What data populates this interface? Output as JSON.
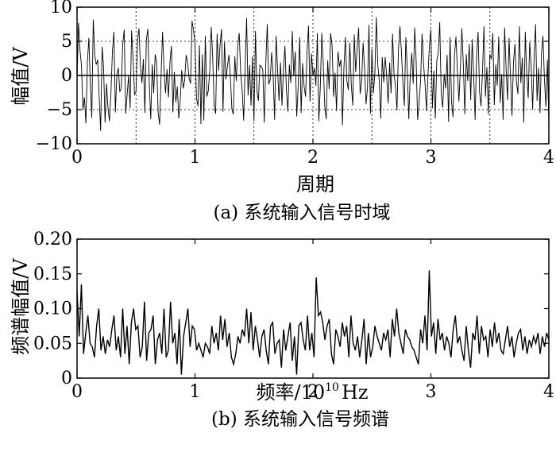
{
  "chart_data": [
    {
      "type": "line",
      "caption": "(a) 系统输入信号时域",
      "xlabel": "周期",
      "ylabel": "幅值/V",
      "xlim": [
        0,
        4
      ],
      "ylim": [
        -10,
        10
      ],
      "xticks": [
        "0",
        "1",
        "2",
        "3",
        "4"
      ],
      "yticks": [
        "10",
        "5",
        "0",
        "−5",
        "−10"
      ],
      "xtick_values": [
        0,
        1,
        2,
        3,
        4
      ],
      "ytick_values": [
        10,
        5,
        0,
        -5,
        -10
      ],
      "grid": true,
      "series": [
        {
          "values": [
            -0.7,
            7.7,
            3.7,
            1.5,
            -5.0,
            -3.2,
            -7.0,
            1.8,
            5.5,
            -1.1,
            -6.2,
            8.2,
            3.0,
            1.6,
            2.3,
            -3.1,
            -8.1,
            4.2,
            1.2,
            -6.9,
            -1.2,
            -4.8,
            -6.7,
            -2.4,
            3.5,
            6.4,
            -5.4,
            0.1,
            1.1,
            -2.4,
            -1.8,
            4.6,
            6.7,
            -5.6,
            -2.7,
            0.0,
            -4.8,
            6.6,
            2.5,
            -2.8,
            -2.4,
            5.1,
            6.9,
            1.3,
            -1.1,
            2.4,
            -5.5,
            5.2,
            6.8,
            -1.3,
            -6.4,
            1.6,
            -2.6,
            3.1,
            1.8,
            -5.4,
            -7.2,
            0.0,
            6.4,
            0.8,
            -2.6,
            0.9,
            -3.2,
            1.9,
            4.3,
            -5.4,
            0.5,
            -3.9,
            -1.6,
            -6.3,
            -3.6,
            0.8,
            -1.9,
            -0.7,
            3.0,
            1.9,
            -0.4,
            -1.2,
            8.0,
            6.6,
            4.7,
            -3.3,
            -4.5,
            4.4,
            -7.1,
            3.1,
            -6.6,
            5.8,
            -3.1,
            -2.3,
            0.6,
            7.1,
            2.7,
            -4.5,
            -5.6,
            6.1,
            0.7,
            4.5,
            6.8,
            -5.3,
            4.9,
            -0.6,
            1.4,
            3.0,
            -0.2,
            -4.9,
            -5.7,
            2.8,
            -0.8,
            4.4,
            6.2,
            0.3,
            -2.2,
            -6.6,
            1.1,
            8.4,
            -2.9,
            1.5,
            -4.4,
            2.8,
            -6.7,
            6.5,
            -2.3,
            -3.7,
            1.5,
            1.3,
            0.8,
            -6.9,
            1.7,
            7.5,
            -1.3,
            -0.6,
            3.4,
            0.1,
            -6.5,
            5.8,
            0.9,
            -3.7,
            1.9,
            -4.4,
            0.9,
            4.3,
            -2.1,
            -5.3,
            1.6,
            -1.1,
            6.5,
            -0.1,
            3.5,
            -6.0,
            -1.6,
            5.6,
            -5.5,
            1.8,
            -1.6,
            -3.1,
            3.5,
            7.3,
            -3.8,
            3.2,
            -0.1,
            1.1,
            -1.5,
            6.2,
            -6.7,
            -1.6,
            6.2,
            1.7,
            -4.5,
            -6.4,
            2.2,
            -2.0,
            6.2,
            4.3,
            -3.1,
            0.4,
            -5.2,
            3.5,
            1.3,
            2.3,
            -7.3,
            1.1,
            5.6,
            -0.8,
            -2.1,
            4.8,
            -1.3,
            -4.4,
            6.0,
            0.5,
            4.2,
            7.0,
            -2.7,
            -0.9,
            4.8,
            1.2,
            -4.2,
            -1.8,
            7.4,
            -5.6,
            3.9,
            -2.6,
            0.4,
            8.5,
            1.5,
            -0.8,
            -6.3,
            2.7,
            -1.0,
            2.7,
            -0.1,
            -4.1,
            1.9,
            -2.6,
            6.1,
            0.2,
            -1.6,
            -5.1,
            3.9,
            7.2,
            3.5,
            -1.0,
            -4.5,
            5.6,
            0.8,
            -6.4,
            0.1,
            3.3,
            -1.2,
            7.0,
            2.1,
            -6.5,
            -3.9,
            -0.8,
            6.1,
            1.7,
            -1.1,
            -5.2,
            0.0,
            4.4,
            6.7,
            -4.8,
            0.7,
            -6.3,
            2.2,
            3.3,
            7.8,
            -2.6,
            -4.7,
            0.2,
            -1.9,
            3.0,
            -6.8,
            5.6,
            -3.9,
            -6.1,
            2.9,
            5.7,
            0.6,
            -3.8,
            1.1,
            6.9,
            1.6,
            -5.7,
            3.1,
            -0.8,
            4.6,
            -3.6,
            5.3,
            0.1,
            -6.5,
            3.0,
            6.4,
            -2.4,
            -4.5,
            0.7,
            7.2,
            -3.1,
            1.2,
            -5.7,
            3.1,
            2.4,
            6.2,
            -4.3,
            1.6,
            -1.5,
            5.7,
            -4.0,
            0.2,
            -6.5,
            7.0,
            1.0,
            -3.6,
            5.5,
            -0.1,
            -5.9,
            1.9,
            4.6,
            -0.9,
            -2.7,
            7.2,
            -1.1,
            2.6,
            -6.9,
            6.4,
            0.3,
            -3.3,
            4.9,
            1.4,
            -5.0,
            2.6,
            7.5,
            -3.7,
            1.1,
            -5.5,
            3.2,
            5.8,
            -0.5,
            -4.6,
            2.3,
            -7.1
          ]
        }
      ]
    },
    {
      "type": "line",
      "caption": "(b) 系统输入信号频谱",
      "xlabel": "频率/10",
      "xlabel_sup": "10",
      "xlabel_unit": "Hz",
      "ylabel": "频谱幅值/V",
      "xlim": [
        0,
        4
      ],
      "ylim": [
        0,
        0.2
      ],
      "xticks": [
        "0",
        "1",
        "2",
        "3",
        "4"
      ],
      "yticks": [
        "0.20",
        "0.15",
        "0.10",
        "0.05",
        "0"
      ],
      "xtick_values": [
        0,
        1,
        2,
        3,
        4
      ],
      "ytick_values": [
        0.2,
        0.15,
        0.1,
        0.05,
        0
      ],
      "grid": false,
      "series": [
        {
          "values": [
            0.125,
            0.06,
            0.135,
            0.035,
            0.065,
            0.09,
            0.05,
            0.045,
            0.03,
            0.075,
            0.1,
            0.04,
            0.06,
            0.035,
            0.055,
            0.045,
            0.07,
            0.09,
            0.04,
            0.06,
            0.03,
            0.1,
            0.035,
            0.075,
            0.02,
            0.08,
            0.1,
            0.07,
            0.075,
            0.03,
            0.045,
            0.11,
            0.025,
            0.065,
            0.07,
            0.09,
            0.02,
            0.055,
            0.065,
            0.035,
            0.1,
            0.03,
            0.04,
            0.11,
            0.05,
            0.065,
            0.02,
            0.085,
            0.005,
            0.06,
            0.08,
            0.1,
            0.045,
            0.075,
            0.07,
            0.04,
            0.05,
            0.04,
            0.03,
            0.05,
            0.045,
            0.035,
            0.075,
            0.05,
            0.065,
            0.04,
            0.09,
            0.055,
            0.085,
            0.045,
            0.065,
            0.03,
            0.02,
            0.035,
            0.06,
            0.05,
            0.07,
            0.06,
            0.1,
            0.05,
            0.095,
            0.04,
            0.075,
            0.055,
            0.03,
            0.06,
            0.07,
            0.04,
            0.02,
            0.075,
            0.08,
            0.035,
            0.05,
            0.055,
            0.015,
            0.07,
            0.04,
            0.06,
            0.08,
            0.025,
            0.06,
            0.005,
            0.075,
            0.08,
            0.055,
            0.04,
            0.09,
            0.04,
            0.065,
            0.03,
            0.145,
            0.09,
            0.095,
            0.08,
            0.055,
            0.075,
            0.085,
            0.035,
            0.02,
            0.07,
            0.06,
            0.045,
            0.08,
            0.06,
            0.075,
            0.03,
            0.09,
            0.05,
            0.04,
            0.06,
            0.03,
            0.055,
            0.085,
            0.02,
            0.065,
            0.03,
            0.045,
            0.075,
            0.06,
            0.05,
            0.04,
            0.065,
            0.055,
            0.07,
            0.03,
            0.085,
            0.06,
            0.1,
            0.065,
            0.05,
            0.035,
            0.07,
            0.06,
            0.055,
            0.045,
            0.04,
            0.03,
            0.02,
            0.07,
            0.05,
            0.09,
            0.04,
            0.155,
            0.06,
            0.08,
            0.035,
            0.085,
            0.055,
            0.065,
            0.04,
            0.06,
            0.05,
            0.03,
            0.07,
            0.09,
            0.05,
            0.06,
            0.04,
            0.025,
            0.075,
            0.04,
            0.015,
            0.065,
            0.055,
            0.09,
            0.035,
            0.075,
            0.055,
            0.06,
            0.03,
            0.07,
            0.045,
            0.08,
            0.05,
            0.065,
            0.04,
            0.035,
            0.055,
            0.075,
            0.045,
            0.06,
            0.03,
            0.05,
            0.065,
            0.07,
            0.04,
            0.06,
            0.035,
            0.055,
            0.045,
            0.06,
            0.05,
            0.065,
            0.035,
            0.06,
            0.045,
            0.065,
            0.055
          ]
        }
      ]
    }
  ]
}
